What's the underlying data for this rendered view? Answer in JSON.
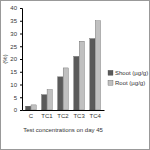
{
  "chart_data": {
    "type": "bar",
    "x_label": "Test concentrations on day 45",
    "y_label": "(%)",
    "categories": [
      "C",
      "TC1",
      "TC2",
      "TC3",
      "TC4"
    ],
    "series": [
      {
        "name": "Shoot (µg/g)",
        "color": "#5a5a5a",
        "values": [
          1.5,
          6,
          13,
          21,
          28
        ]
      },
      {
        "name": "Root (µg/g)",
        "color": "#c0c0c0",
        "values": [
          2,
          8,
          16.5,
          27,
          35
        ]
      }
    ],
    "ylim": [
      0,
      40
    ],
    "yticks": [
      0,
      5,
      10,
      15,
      20,
      25,
      30,
      35,
      40
    ],
    "grid": false,
    "legend": "right"
  }
}
